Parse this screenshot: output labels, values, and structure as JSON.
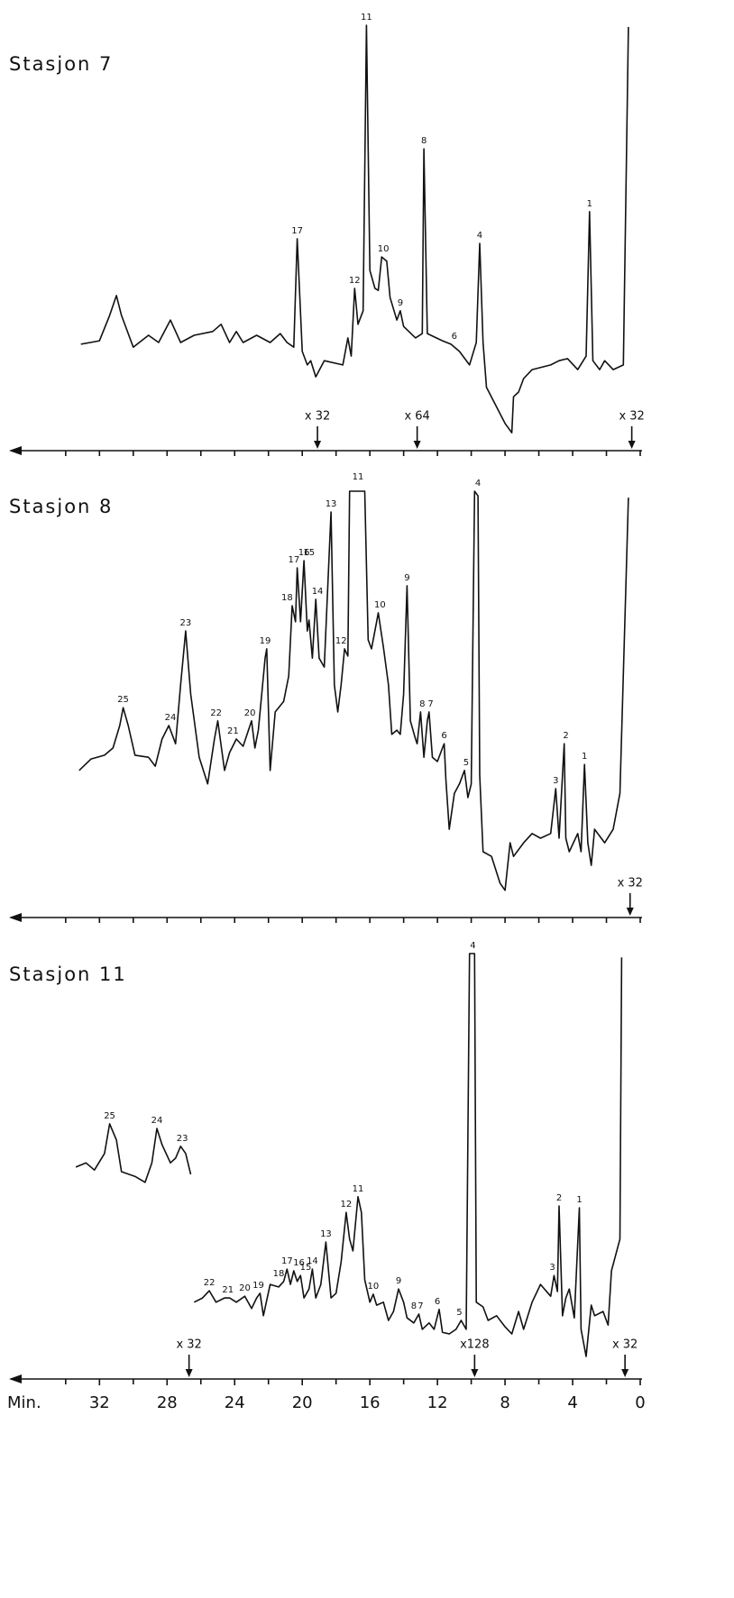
{
  "chart_data": [
    {
      "type": "line",
      "title": "Stasjon 7",
      "color": "#111111",
      "xlim": [
        37.3,
        0
      ],
      "ylim": [
        0,
        100
      ],
      "xminor": [
        34,
        32,
        30,
        28,
        26,
        24,
        22,
        20,
        18,
        16,
        14,
        12,
        10,
        8,
        6,
        4,
        2,
        0
      ],
      "series": [
        {
          "x": [
            33.1,
            32.0,
            31.4,
            31.0,
            30.7,
            30.0,
            29.1,
            28.5,
            27.8,
            27.2,
            26.4,
            25.3,
            24.8,
            24.3,
            23.9,
            23.5,
            22.7,
            21.9,
            21.3,
            20.9,
            20.5,
            20.3,
            20.0,
            19.7,
            19.5,
            19.2,
            18.7,
            17.6,
            17.3,
            17.1,
            16.9,
            16.7,
            16.4,
            16.2,
            16.0,
            15.7,
            15.5,
            15.3,
            15.0,
            14.8,
            14.4,
            14.2,
            14.0,
            13.3,
            12.9,
            12.8,
            12.6,
            11.7,
            11.2,
            10.7,
            10.1,
            9.7,
            9.5,
            9.3,
            9.1,
            8.0,
            7.6,
            7.5,
            7.2,
            6.9,
            6.4,
            5.3,
            4.8,
            4.3,
            3.7,
            3.2,
            3.0,
            2.8,
            2.4,
            2.1,
            1.6,
            1.0,
            0.7
          ],
          "values": [
            23.0,
            23.8,
            29.8,
            34.5,
            29.8,
            22.3,
            25.1,
            23.4,
            28.7,
            23.4,
            25.1,
            26.0,
            27.7,
            23.4,
            26.0,
            23.4,
            25.1,
            23.4,
            25.5,
            23.4,
            22.3,
            47.9,
            21.3,
            18.1,
            19.1,
            15.3,
            19.1,
            18.1,
            24.5,
            20.2,
            36.2,
            27.7,
            30.9,
            98.3,
            40.4,
            36.2,
            35.7,
            43.6,
            42.6,
            34.0,
            28.7,
            30.9,
            27.2,
            24.5,
            25.5,
            69.1,
            25.5,
            23.8,
            23.0,
            21.3,
            18.1,
            23.4,
            46.8,
            23.4,
            12.8,
            4.3,
            2.1,
            10.6,
            11.7,
            14.9,
            17.0,
            18.1,
            19.1,
            19.6,
            17.0,
            20.2,
            54.3,
            19.1,
            17.0,
            19.1,
            17.0,
            18.1,
            97.9
          ]
        }
      ],
      "peaks": [
        {
          "label": "17",
          "x": 20.3
        },
        {
          "label": "12",
          "x": 16.9
        },
        {
          "label": "11",
          "x": 16.2
        },
        {
          "label": "10",
          "x": 15.2
        },
        {
          "label": "9",
          "x": 14.2
        },
        {
          "label": "8",
          "x": 12.8
        },
        {
          "label": "6",
          "x": 11.0
        },
        {
          "label": "4",
          "x": 9.5
        },
        {
          "label": "1",
          "x": 3.0
        }
      ],
      "markers": [
        {
          "label": "x 32",
          "x": 19.1
        },
        {
          "label": "x 64",
          "x": 13.2
        },
        {
          "label": "x 32",
          "x": 0.5
        }
      ]
    },
    {
      "type": "line",
      "title": "Stasjon 8",
      "color": "#111111",
      "xlim": [
        37.3,
        0
      ],
      "ylim": [
        0,
        100
      ],
      "xminor": [
        34,
        32,
        30,
        28,
        26,
        24,
        22,
        20,
        18,
        16,
        14,
        12,
        10,
        8,
        6,
        4,
        2,
        0
      ],
      "series": [
        {
          "x": [
            33.2,
            32.5,
            31.7,
            31.2,
            30.8,
            30.6,
            30.3,
            29.9,
            29.1,
            28.7,
            28.3,
            27.9,
            27.5,
            27.2,
            26.9,
            26.6,
            26.1,
            25.6,
            25.2,
            25.0,
            24.6,
            24.3,
            23.9,
            23.5,
            23.0,
            22.8,
            22.6,
            22.2,
            22.1,
            21.9,
            21.6,
            21.1,
            20.8,
            20.6,
            20.4,
            20.3,
            20.1,
            19.9,
            19.7,
            19.6,
            19.4,
            19.2,
            19.0,
            18.7,
            18.3,
            18.1,
            17.9,
            17.7,
            17.5,
            17.3,
            17.2,
            16.3,
            16.1,
            15.9,
            15.6,
            15.5,
            15.2,
            14.9,
            14.7,
            14.4,
            14.2,
            14.0,
            13.8,
            13.6,
            13.3,
            13.2,
            13.0,
            12.8,
            12.6,
            12.5,
            12.3,
            12.0,
            11.7,
            11.6,
            11.5,
            11.3,
            11.0,
            10.7,
            10.4,
            10.2,
            10.0,
            9.8,
            9.6,
            9.5,
            9.3,
            8.8,
            8.3,
            8.0,
            7.7,
            7.5,
            6.9,
            6.4,
            5.9,
            5.3,
            5.0,
            4.8,
            4.5,
            4.4,
            4.2,
            3.7,
            3.5,
            3.3,
            3.1,
            2.9,
            2.7,
            2.1,
            1.6,
            1.2,
            0.7
          ],
          "values": [
            32.6,
            35.3,
            36.2,
            37.9,
            43.2,
            47.4,
            43.2,
            36.2,
            35.7,
            33.6,
            40.0,
            43.2,
            38.9,
            52.8,
            65.5,
            50.6,
            35.7,
            29.4,
            40.0,
            44.3,
            32.6,
            36.8,
            40.0,
            38.3,
            44.3,
            37.9,
            42.1,
            59.1,
            61.3,
            32.6,
            46.4,
            48.9,
            54.9,
            71.5,
            67.7,
            80.4,
            67.7,
            82.1,
            65.5,
            68.1,
            59.1,
            73.0,
            59.1,
            57.0,
            93.6,
            52.8,
            46.4,
            52.8,
            61.3,
            59.6,
            98.5,
            98.5,
            63.4,
            61.3,
            67.7,
            69.8,
            61.7,
            52.8,
            41.1,
            42.1,
            41.1,
            50.6,
            76.2,
            44.3,
            40.0,
            38.9,
            46.4,
            35.7,
            44.3,
            46.4,
            35.7,
            34.7,
            37.9,
            38.9,
            30.4,
            18.7,
            27.2,
            29.4,
            32.6,
            26.2,
            29.4,
            98.5,
            97.4,
            31.5,
            13.4,
            12.3,
            6.0,
            4.3,
            15.5,
            12.3,
            15.5,
            17.7,
            16.6,
            17.7,
            28.3,
            16.6,
            38.9,
            16.6,
            13.4,
            17.7,
            13.4,
            34.0,
            15.5,
            10.2,
            18.7,
            15.5,
            18.7,
            27.2,
            97.0
          ]
        }
      ],
      "peaks": [
        {
          "label": "25",
          "x": 30.6
        },
        {
          "label": "24",
          "x": 27.8
        },
        {
          "label": "23",
          "x": 26.9
        },
        {
          "label": "22",
          "x": 25.1
        },
        {
          "label": "21",
          "x": 24.1
        },
        {
          "label": "20",
          "x": 23.1
        },
        {
          "label": "19",
          "x": 22.2
        },
        {
          "label": "18",
          "x": 20.9
        },
        {
          "label": "17",
          "x": 20.5
        },
        {
          "label": "16",
          "x": 19.9
        },
        {
          "label": "15",
          "x": 19.6
        },
        {
          "label": "14",
          "x": 19.1
        },
        {
          "label": "13",
          "x": 18.3
        },
        {
          "label": "12",
          "x": 17.7
        },
        {
          "label": "11",
          "x": 16.7
        },
        {
          "label": "10",
          "x": 15.4
        },
        {
          "label": "9",
          "x": 13.8
        },
        {
          "label": "8",
          "x": 12.9
        },
        {
          "label": "7",
          "x": 12.4
        },
        {
          "label": "6",
          "x": 11.6
        },
        {
          "label": "5",
          "x": 10.3
        },
        {
          "label": "4",
          "x": 9.6
        },
        {
          "label": "3",
          "x": 5.0
        },
        {
          "label": "2",
          "x": 4.4
        },
        {
          "label": "1",
          "x": 3.3
        }
      ],
      "markers": [
        {
          "label": "x 32",
          "x": 0.6
        }
      ]
    },
    {
      "type": "line",
      "title": "Stasjon 11",
      "color": "#111111",
      "xlim": [
        37.3,
        0
      ],
      "ylim": [
        0,
        100
      ],
      "x_label": "Min.",
      "xticks": [
        32,
        28,
        24,
        20,
        16,
        12,
        8,
        4,
        0
      ],
      "xminor": [
        34,
        30,
        26,
        22,
        18,
        14,
        10,
        6,
        2
      ],
      "series": [
        {
          "x": [
            26.4,
            25.9,
            25.5,
            25.1,
            24.6,
            24.3,
            23.9,
            23.4,
            23.0,
            22.7,
            22.5,
            22.3,
            21.9,
            21.4,
            21.1,
            20.9,
            20.7,
            20.5,
            20.3,
            20.1,
            19.9,
            19.6,
            19.4,
            19.2,
            18.9,
            18.6,
            18.3,
            18.0,
            17.7,
            17.4,
            17.2,
            17.0,
            16.7,
            16.5,
            16.3,
            16.0,
            15.8,
            15.6,
            15.2,
            14.9,
            14.6,
            14.3,
            14.0,
            13.8,
            13.4,
            13.1,
            12.9,
            12.5,
            12.2,
            11.9,
            11.7,
            11.3,
            10.9,
            10.6,
            10.3,
            10.1,
            9.8,
            9.7,
            9.3,
            9.0,
            8.5,
            8.0,
            7.6,
            7.2,
            6.9,
            6.4,
            5.9,
            5.3,
            5.1,
            4.9,
            4.8,
            4.6,
            4.4,
            4.2,
            3.9,
            3.6,
            3.5,
            3.2,
            2.9,
            2.7,
            2.2,
            1.9,
            1.7,
            1.2,
            1.1
          ],
          "values": [
            16.0,
            17.0,
            18.7,
            16.0,
            17.0,
            17.0,
            16.0,
            17.4,
            14.5,
            17.0,
            18.1,
            12.8,
            20.2,
            19.6,
            20.9,
            23.8,
            20.2,
            23.4,
            20.9,
            22.3,
            17.0,
            19.1,
            23.8,
            17.0,
            20.2,
            30.2,
            17.0,
            18.1,
            25.5,
            37.2,
            30.9,
            28.1,
            40.9,
            37.2,
            21.3,
            16.0,
            17.9,
            15.3,
            16.0,
            11.7,
            13.8,
            19.1,
            16.0,
            12.3,
            11.1,
            13.2,
            9.6,
            11.1,
            9.6,
            14.3,
            8.9,
            8.5,
            9.6,
            11.7,
            9.6,
            98.3,
            98.3,
            16.0,
            14.9,
            11.7,
            12.8,
            10.2,
            8.5,
            13.8,
            9.6,
            16.0,
            20.2,
            17.4,
            22.3,
            18.5,
            38.7,
            12.8,
            17.0,
            19.1,
            12.3,
            38.3,
            9.6,
            3.2,
            15.3,
            12.8,
            13.8,
            10.6,
            23.4,
            30.9,
            97.4
          ]
        },
        {
          "x": [
            33.4,
            32.8,
            32.3,
            31.7,
            31.4,
            31.0,
            30.7,
            29.9,
            29.3,
            28.9,
            28.6,
            28.3,
            27.8,
            27.5,
            27.2,
            26.9,
            26.6
          ],
          "values": [
            47.9,
            48.9,
            47.2,
            51.1,
            58.1,
            54.3,
            46.8,
            45.7,
            44.3,
            48.9,
            57.0,
            53.2,
            48.9,
            50.0,
            52.8,
            51.1,
            46.2
          ]
        }
      ],
      "peaks": [
        {
          "label": "25",
          "x": 31.4
        },
        {
          "label": "24",
          "x": 28.6
        },
        {
          "label": "23",
          "x": 27.1
        },
        {
          "label": "22",
          "x": 25.5
        },
        {
          "label": "21",
          "x": 24.4
        },
        {
          "label": "20",
          "x": 23.4
        },
        {
          "label": "19",
          "x": 22.6
        },
        {
          "label": "18",
          "x": 21.4
        },
        {
          "label": "17",
          "x": 20.9
        },
        {
          "label": "16",
          "x": 20.2
        },
        {
          "label": "15",
          "x": 19.8
        },
        {
          "label": "14",
          "x": 19.4
        },
        {
          "label": "13",
          "x": 18.6
        },
        {
          "label": "12",
          "x": 17.4
        },
        {
          "label": "11",
          "x": 16.7
        },
        {
          "label": "10",
          "x": 15.8
        },
        {
          "label": "9",
          "x": 14.3
        },
        {
          "label": "8",
          "x": 13.4
        },
        {
          "label": "7",
          "x": 13.0
        },
        {
          "label": "6",
          "x": 12.0
        },
        {
          "label": "5",
          "x": 10.7
        },
        {
          "label": "4",
          "x": 9.9
        },
        {
          "label": "3",
          "x": 5.2
        },
        {
          "label": "2",
          "x": 4.8
        },
        {
          "label": "1",
          "x": 3.6
        }
      ],
      "markers": [
        {
          "label": "x 32",
          "x": 26.7
        },
        {
          "label": "x128",
          "x": 9.8
        },
        {
          "label": "x 32",
          "x": 0.9
        }
      ]
    }
  ]
}
